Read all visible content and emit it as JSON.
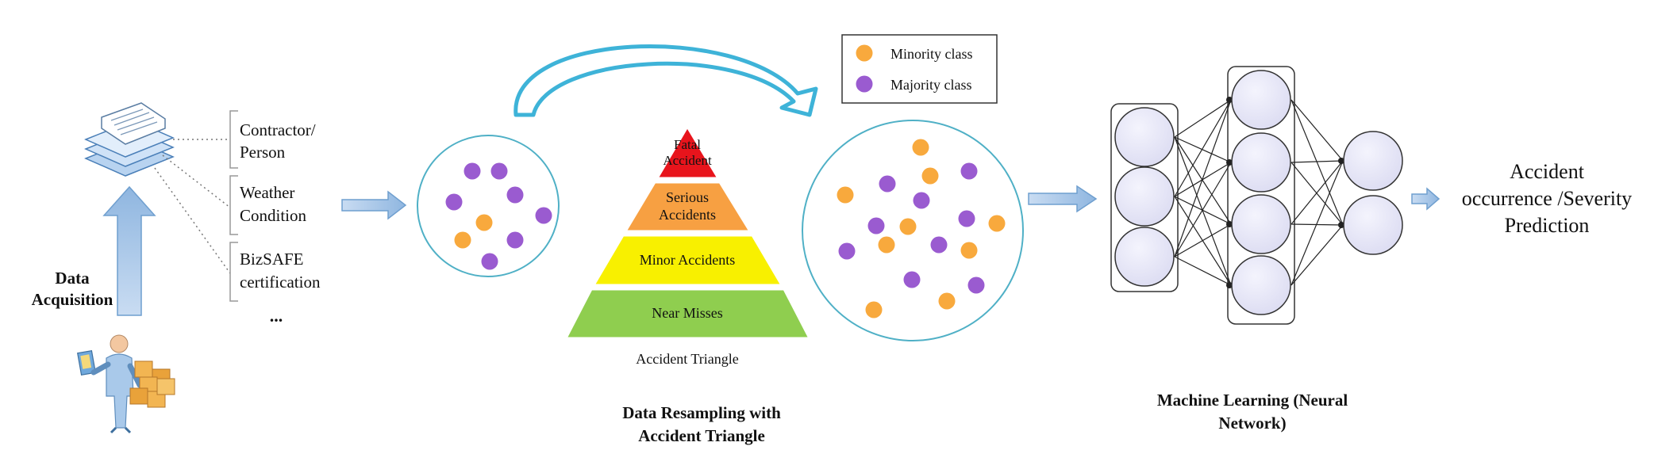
{
  "acquisition": {
    "title_line1": "Data",
    "title_line2": "Acquisition",
    "features": [
      {
        "line1": "Contractor/",
        "line2": "Person"
      },
      {
        "line1": "Weather",
        "line2": "Condition"
      },
      {
        "line1": "BizSAFE",
        "line2": "certification"
      }
    ],
    "more": "..."
  },
  "resampling": {
    "caption_line1": "Data Resampling with",
    "caption_line2": "Accident Triangle",
    "triangle_label": "Accident Triangle",
    "levels": [
      {
        "line1": "Fatal",
        "line2": "Accident",
        "color": "#e8141c"
      },
      {
        "line1": "Serious",
        "line2": "Accidents",
        "color": "#f7a042"
      },
      {
        "line1": "Minor Accidents",
        "line2": "",
        "color": "#f8f000"
      },
      {
        "line1": "Near Misses",
        "line2": "",
        "color": "#8fce4f"
      }
    ]
  },
  "legend": {
    "minority": {
      "label": "Minority class",
      "color": "#f8a93d"
    },
    "majority": {
      "label": "Majority class",
      "color": "#9a5bd0"
    }
  },
  "ml": {
    "caption_line1": "Machine Learning (Neural",
    "caption_line2": "Network)"
  },
  "output": {
    "line1": "Accident",
    "line2": "occurrence /Severity",
    "line3": "Prediction"
  },
  "colors": {
    "arrow_fill": "#a7c7e7",
    "arrow_stroke": "#6f9fcf",
    "circle_stroke": "#4fb0c6",
    "node_fill": "#e6e6f8",
    "curved_arrow": "#3eb3d8"
  },
  "icons": [
    "document-stack-icon",
    "person-with-boxes-icon"
  ]
}
